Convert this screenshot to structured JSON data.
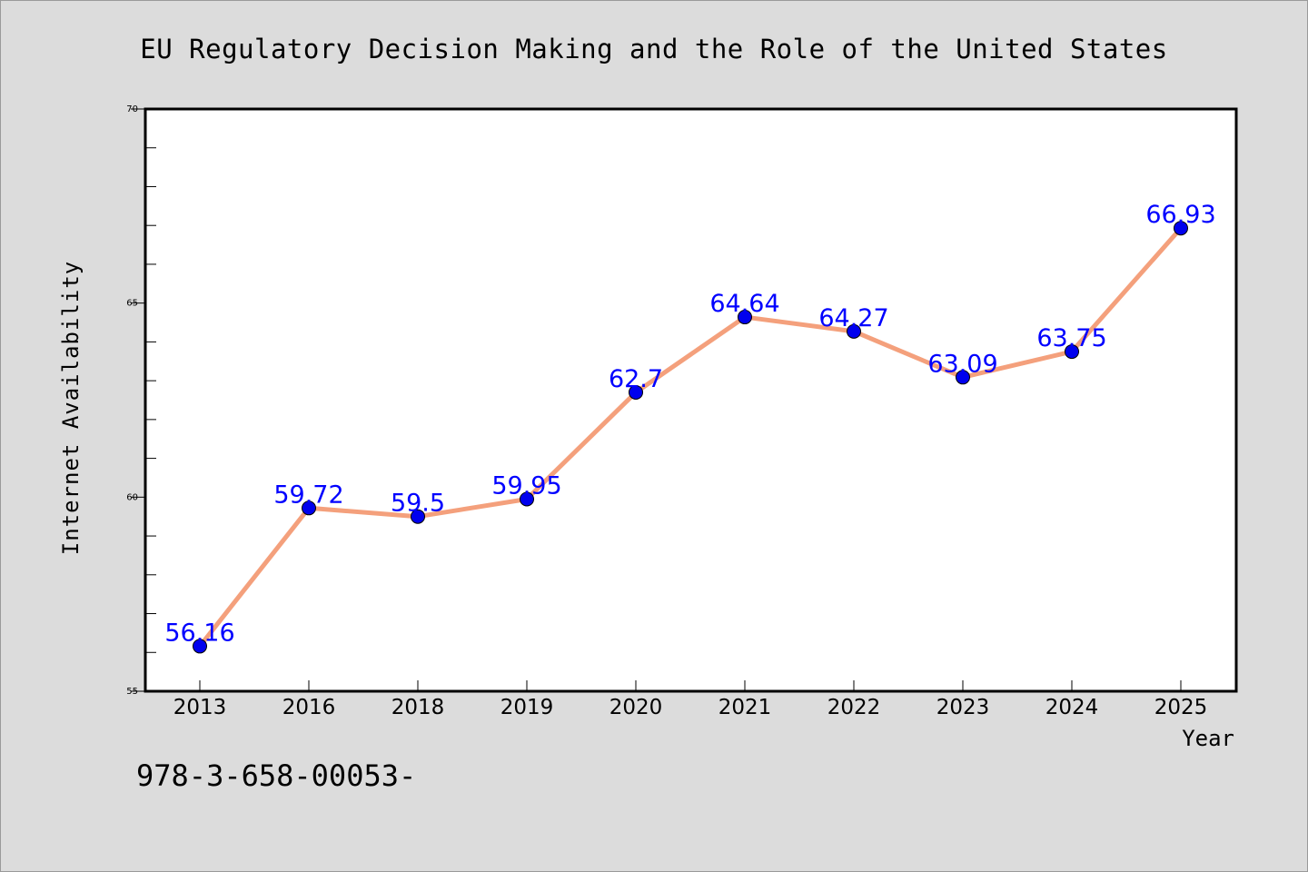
{
  "chart_data": {
    "type": "line",
    "title": "EU Regulatory Decision Making and the Role of the United States",
    "xlabel": "Year",
    "ylabel": "Internet Availability",
    "categories": [
      "2013",
      "2016",
      "2018",
      "2019",
      "2020",
      "2021",
      "2022",
      "2023",
      "2024",
      "2025"
    ],
    "series": [
      {
        "values": [
          56.16,
          59.72,
          59.5,
          59.95,
          62.7,
          64.64,
          64.27,
          63.09,
          63.75,
          66.93
        ],
        "labels": [
          "56.16",
          "59.72",
          "59.5",
          "59.95",
          "62.7",
          "64.64",
          "64.27",
          "63.09",
          "63.75",
          "66.93"
        ]
      }
    ],
    "ylim": [
      55,
      70
    ],
    "yticks": [
      "55",
      "60",
      "65",
      "70"
    ],
    "grid": false,
    "colors": {
      "line": "#f4a07c",
      "marker": "#0000ee",
      "label": "#0000ff",
      "background": "#dcdcdc",
      "plot_background": "#ffffff"
    }
  },
  "footer_text": "978-3-658-00053-"
}
